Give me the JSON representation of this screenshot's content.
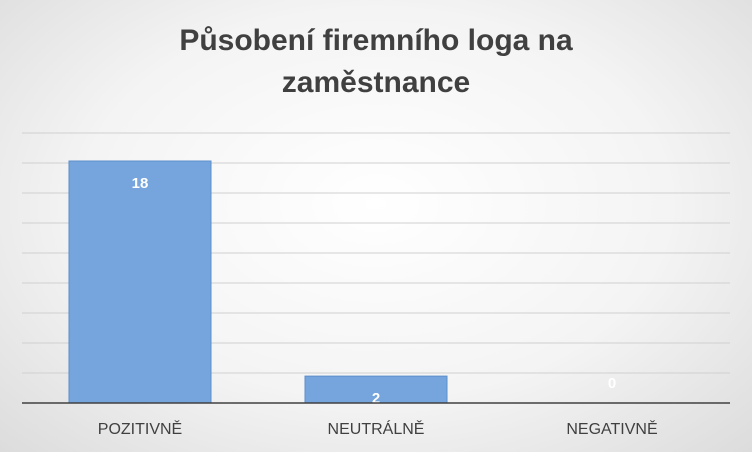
{
  "chart_data": {
    "type": "bar",
    "title_lines": [
      "Působení firemního loga na",
      "zaměstnance"
    ],
    "categories": [
      "POZITIVNĚ",
      "NEUTRÁLNĚ",
      "NEGATIVNĚ"
    ],
    "values": [
      18,
      2,
      0
    ],
    "ylim": [
      0,
      18
    ],
    "grid": true,
    "colors": {
      "bar": "#76a5dd",
      "bar_edge": "#5b8ecb",
      "label_on_bar": "#ffffff",
      "label_off_bar": "#ffffff",
      "grid": "#d0d0d0",
      "axis": "#404040",
      "tick": "#404040"
    }
  }
}
